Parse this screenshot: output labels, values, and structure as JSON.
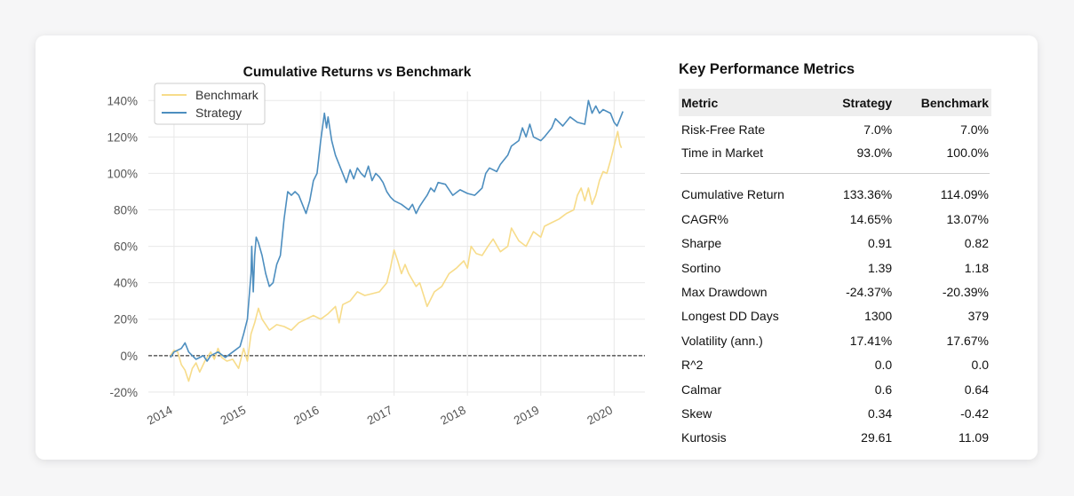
{
  "chart_data": {
    "type": "line",
    "title": "Cumulative Returns vs Benchmark",
    "xlabel": "",
    "ylabel": "",
    "x_ticks": [
      "2014",
      "2015",
      "2016",
      "2017",
      "2018",
      "2019",
      "2020"
    ],
    "y_ticks": [
      "140%",
      "120%",
      "100%",
      "80%",
      "60%",
      "40%",
      "20%",
      "0%",
      "-20%"
    ],
    "xlim": [
      2013.65,
      2020.42
    ],
    "ylim": [
      -22,
      145
    ],
    "grid": true,
    "legend_position": "top-left",
    "baseline_zero": true,
    "series": [
      {
        "name": "Benchmark",
        "color": "#f7dc8a",
        "points": [
          [
            2013.95,
            0
          ],
          [
            2014.0,
            3
          ],
          [
            2014.05,
            2
          ],
          [
            2014.1,
            -5
          ],
          [
            2014.15,
            -8
          ],
          [
            2014.2,
            -14
          ],
          [
            2014.25,
            -7
          ],
          [
            2014.3,
            -4
          ],
          [
            2014.35,
            -9
          ],
          [
            2014.42,
            -3
          ],
          [
            2014.5,
            2
          ],
          [
            2014.55,
            -2
          ],
          [
            2014.6,
            4
          ],
          [
            2014.65,
            -1
          ],
          [
            2014.72,
            -3
          ],
          [
            2014.8,
            -2
          ],
          [
            2014.88,
            -7
          ],
          [
            2014.95,
            4
          ],
          [
            2015.0,
            -3
          ],
          [
            2015.05,
            12
          ],
          [
            2015.1,
            18
          ],
          [
            2015.15,
            26
          ],
          [
            2015.2,
            20
          ],
          [
            2015.3,
            14
          ],
          [
            2015.4,
            17
          ],
          [
            2015.5,
            16
          ],
          [
            2015.6,
            14
          ],
          [
            2015.7,
            18
          ],
          [
            2015.8,
            20
          ],
          [
            2015.9,
            22
          ],
          [
            2016.0,
            20
          ],
          [
            2016.1,
            23
          ],
          [
            2016.2,
            27
          ],
          [
            2016.25,
            18
          ],
          [
            2016.3,
            28
          ],
          [
            2016.4,
            30
          ],
          [
            2016.5,
            35
          ],
          [
            2016.6,
            33
          ],
          [
            2016.7,
            34
          ],
          [
            2016.8,
            35
          ],
          [
            2016.9,
            40
          ],
          [
            2016.95,
            48
          ],
          [
            2017.0,
            58
          ],
          [
            2017.05,
            52
          ],
          [
            2017.1,
            45
          ],
          [
            2017.15,
            50
          ],
          [
            2017.2,
            45
          ],
          [
            2017.3,
            38
          ],
          [
            2017.35,
            40
          ],
          [
            2017.45,
            27
          ],
          [
            2017.55,
            35
          ],
          [
            2017.65,
            38
          ],
          [
            2017.75,
            45
          ],
          [
            2017.85,
            48
          ],
          [
            2017.95,
            52
          ],
          [
            2018.0,
            48
          ],
          [
            2018.05,
            60
          ],
          [
            2018.12,
            56
          ],
          [
            2018.2,
            55
          ],
          [
            2018.28,
            60
          ],
          [
            2018.35,
            64
          ],
          [
            2018.45,
            57
          ],
          [
            2018.55,
            60
          ],
          [
            2018.6,
            70
          ],
          [
            2018.7,
            63
          ],
          [
            2018.8,
            60
          ],
          [
            2018.9,
            68
          ],
          [
            2019.0,
            65
          ],
          [
            2019.05,
            71
          ],
          [
            2019.15,
            73
          ],
          [
            2019.25,
            75
          ],
          [
            2019.35,
            78
          ],
          [
            2019.45,
            80
          ],
          [
            2019.5,
            88
          ],
          [
            2019.55,
            92
          ],
          [
            2019.6,
            85
          ],
          [
            2019.65,
            92
          ],
          [
            2019.7,
            83
          ],
          [
            2019.75,
            88
          ],
          [
            2019.8,
            96
          ],
          [
            2019.85,
            101
          ],
          [
            2019.9,
            100
          ],
          [
            2019.95,
            107
          ],
          [
            2020.0,
            115
          ],
          [
            2020.03,
            120
          ],
          [
            2020.05,
            123
          ],
          [
            2020.08,
            116
          ],
          [
            2020.1,
            114
          ]
        ]
      },
      {
        "name": "Strategy",
        "color": "#4d8ebf",
        "points": [
          [
            2013.95,
            -1
          ],
          [
            2014.0,
            2
          ],
          [
            2014.05,
            3
          ],
          [
            2014.1,
            4
          ],
          [
            2014.15,
            7
          ],
          [
            2014.2,
            2
          ],
          [
            2014.25,
            0
          ],
          [
            2014.3,
            -2
          ],
          [
            2014.35,
            -1
          ],
          [
            2014.4,
            0
          ],
          [
            2014.45,
            -3
          ],
          [
            2014.5,
            0
          ],
          [
            2014.6,
            2
          ],
          [
            2014.7,
            -1
          ],
          [
            2014.8,
            2
          ],
          [
            2014.9,
            5
          ],
          [
            2014.95,
            12
          ],
          [
            2015.0,
            20
          ],
          [
            2015.02,
            30
          ],
          [
            2015.05,
            45
          ],
          [
            2015.06,
            60
          ],
          [
            2015.08,
            35
          ],
          [
            2015.1,
            55
          ],
          [
            2015.12,
            65
          ],
          [
            2015.15,
            62
          ],
          [
            2015.2,
            55
          ],
          [
            2015.25,
            45
          ],
          [
            2015.3,
            38
          ],
          [
            2015.35,
            40
          ],
          [
            2015.4,
            50
          ],
          [
            2015.45,
            55
          ],
          [
            2015.5,
            75
          ],
          [
            2015.55,
            90
          ],
          [
            2015.6,
            88
          ],
          [
            2015.65,
            90
          ],
          [
            2015.7,
            88
          ],
          [
            2015.8,
            78
          ],
          [
            2015.85,
            85
          ],
          [
            2015.9,
            96
          ],
          [
            2015.95,
            100
          ],
          [
            2016.0,
            118
          ],
          [
            2016.05,
            133
          ],
          [
            2016.08,
            125
          ],
          [
            2016.1,
            131
          ],
          [
            2016.15,
            118
          ],
          [
            2016.2,
            110
          ],
          [
            2016.25,
            105
          ],
          [
            2016.3,
            100
          ],
          [
            2016.35,
            95
          ],
          [
            2016.4,
            102
          ],
          [
            2016.45,
            97
          ],
          [
            2016.5,
            103
          ],
          [
            2016.55,
            100
          ],
          [
            2016.6,
            98
          ],
          [
            2016.65,
            104
          ],
          [
            2016.7,
            96
          ],
          [
            2016.75,
            100
          ],
          [
            2016.8,
            98
          ],
          [
            2016.85,
            95
          ],
          [
            2016.9,
            90
          ],
          [
            2016.95,
            87
          ],
          [
            2017.0,
            85
          ],
          [
            2017.1,
            83
          ],
          [
            2017.2,
            80
          ],
          [
            2017.25,
            83
          ],
          [
            2017.3,
            78
          ],
          [
            2017.35,
            82
          ],
          [
            2017.4,
            85
          ],
          [
            2017.45,
            88
          ],
          [
            2017.5,
            92
          ],
          [
            2017.55,
            90
          ],
          [
            2017.6,
            95
          ],
          [
            2017.7,
            94
          ],
          [
            2017.8,
            88
          ],
          [
            2017.9,
            91
          ],
          [
            2018.0,
            89
          ],
          [
            2018.1,
            88
          ],
          [
            2018.15,
            90
          ],
          [
            2018.2,
            92
          ],
          [
            2018.25,
            100
          ],
          [
            2018.3,
            103
          ],
          [
            2018.4,
            101
          ],
          [
            2018.45,
            105
          ],
          [
            2018.55,
            110
          ],
          [
            2018.6,
            115
          ],
          [
            2018.7,
            118
          ],
          [
            2018.75,
            125
          ],
          [
            2018.8,
            120
          ],
          [
            2018.85,
            127
          ],
          [
            2018.9,
            120
          ],
          [
            2019.0,
            118
          ],
          [
            2019.05,
            120
          ],
          [
            2019.15,
            125
          ],
          [
            2019.2,
            130
          ],
          [
            2019.3,
            126
          ],
          [
            2019.4,
            131
          ],
          [
            2019.5,
            128
          ],
          [
            2019.6,
            127
          ],
          [
            2019.65,
            140
          ],
          [
            2019.7,
            133
          ],
          [
            2019.75,
            137
          ],
          [
            2019.8,
            133
          ],
          [
            2019.85,
            135
          ],
          [
            2019.95,
            133
          ],
          [
            2020.0,
            128
          ],
          [
            2020.04,
            126
          ],
          [
            2020.07,
            129
          ],
          [
            2020.1,
            132
          ],
          [
            2020.12,
            134
          ]
        ]
      }
    ]
  },
  "metrics": {
    "title": "Key Performance Metrics",
    "columns": [
      "Metric",
      "Strategy",
      "Benchmark"
    ],
    "rows_top": [
      {
        "metric": "Risk-Free Rate",
        "strategy": "7.0%",
        "benchmark": "7.0%"
      },
      {
        "metric": "Time in Market",
        "strategy": "93.0%",
        "benchmark": "100.0%"
      }
    ],
    "rows_main": [
      {
        "metric": "Cumulative Return",
        "strategy": "133.36%",
        "benchmark": "114.09%"
      },
      {
        "metric": "CAGR%",
        "strategy": "14.65%",
        "benchmark": "13.07%"
      },
      {
        "metric": "Sharpe",
        "strategy": "0.91",
        "benchmark": "0.82"
      },
      {
        "metric": "Sortino",
        "strategy": "1.39",
        "benchmark": "1.18"
      },
      {
        "metric": "Max Drawdown",
        "strategy": "-24.37%",
        "benchmark": "-20.39%"
      },
      {
        "metric": "Longest DD Days",
        "strategy": "1300",
        "benchmark": "379"
      },
      {
        "metric": "Volatility (ann.)",
        "strategy": "17.41%",
        "benchmark": "17.67%"
      },
      {
        "metric": "R^2",
        "strategy": "0.0",
        "benchmark": "0.0"
      },
      {
        "metric": "Calmar",
        "strategy": "0.6",
        "benchmark": "0.64"
      },
      {
        "metric": "Skew",
        "strategy": "0.34",
        "benchmark": "-0.42"
      },
      {
        "metric": "Kurtosis",
        "strategy": "29.61",
        "benchmark": "11.09"
      }
    ]
  }
}
